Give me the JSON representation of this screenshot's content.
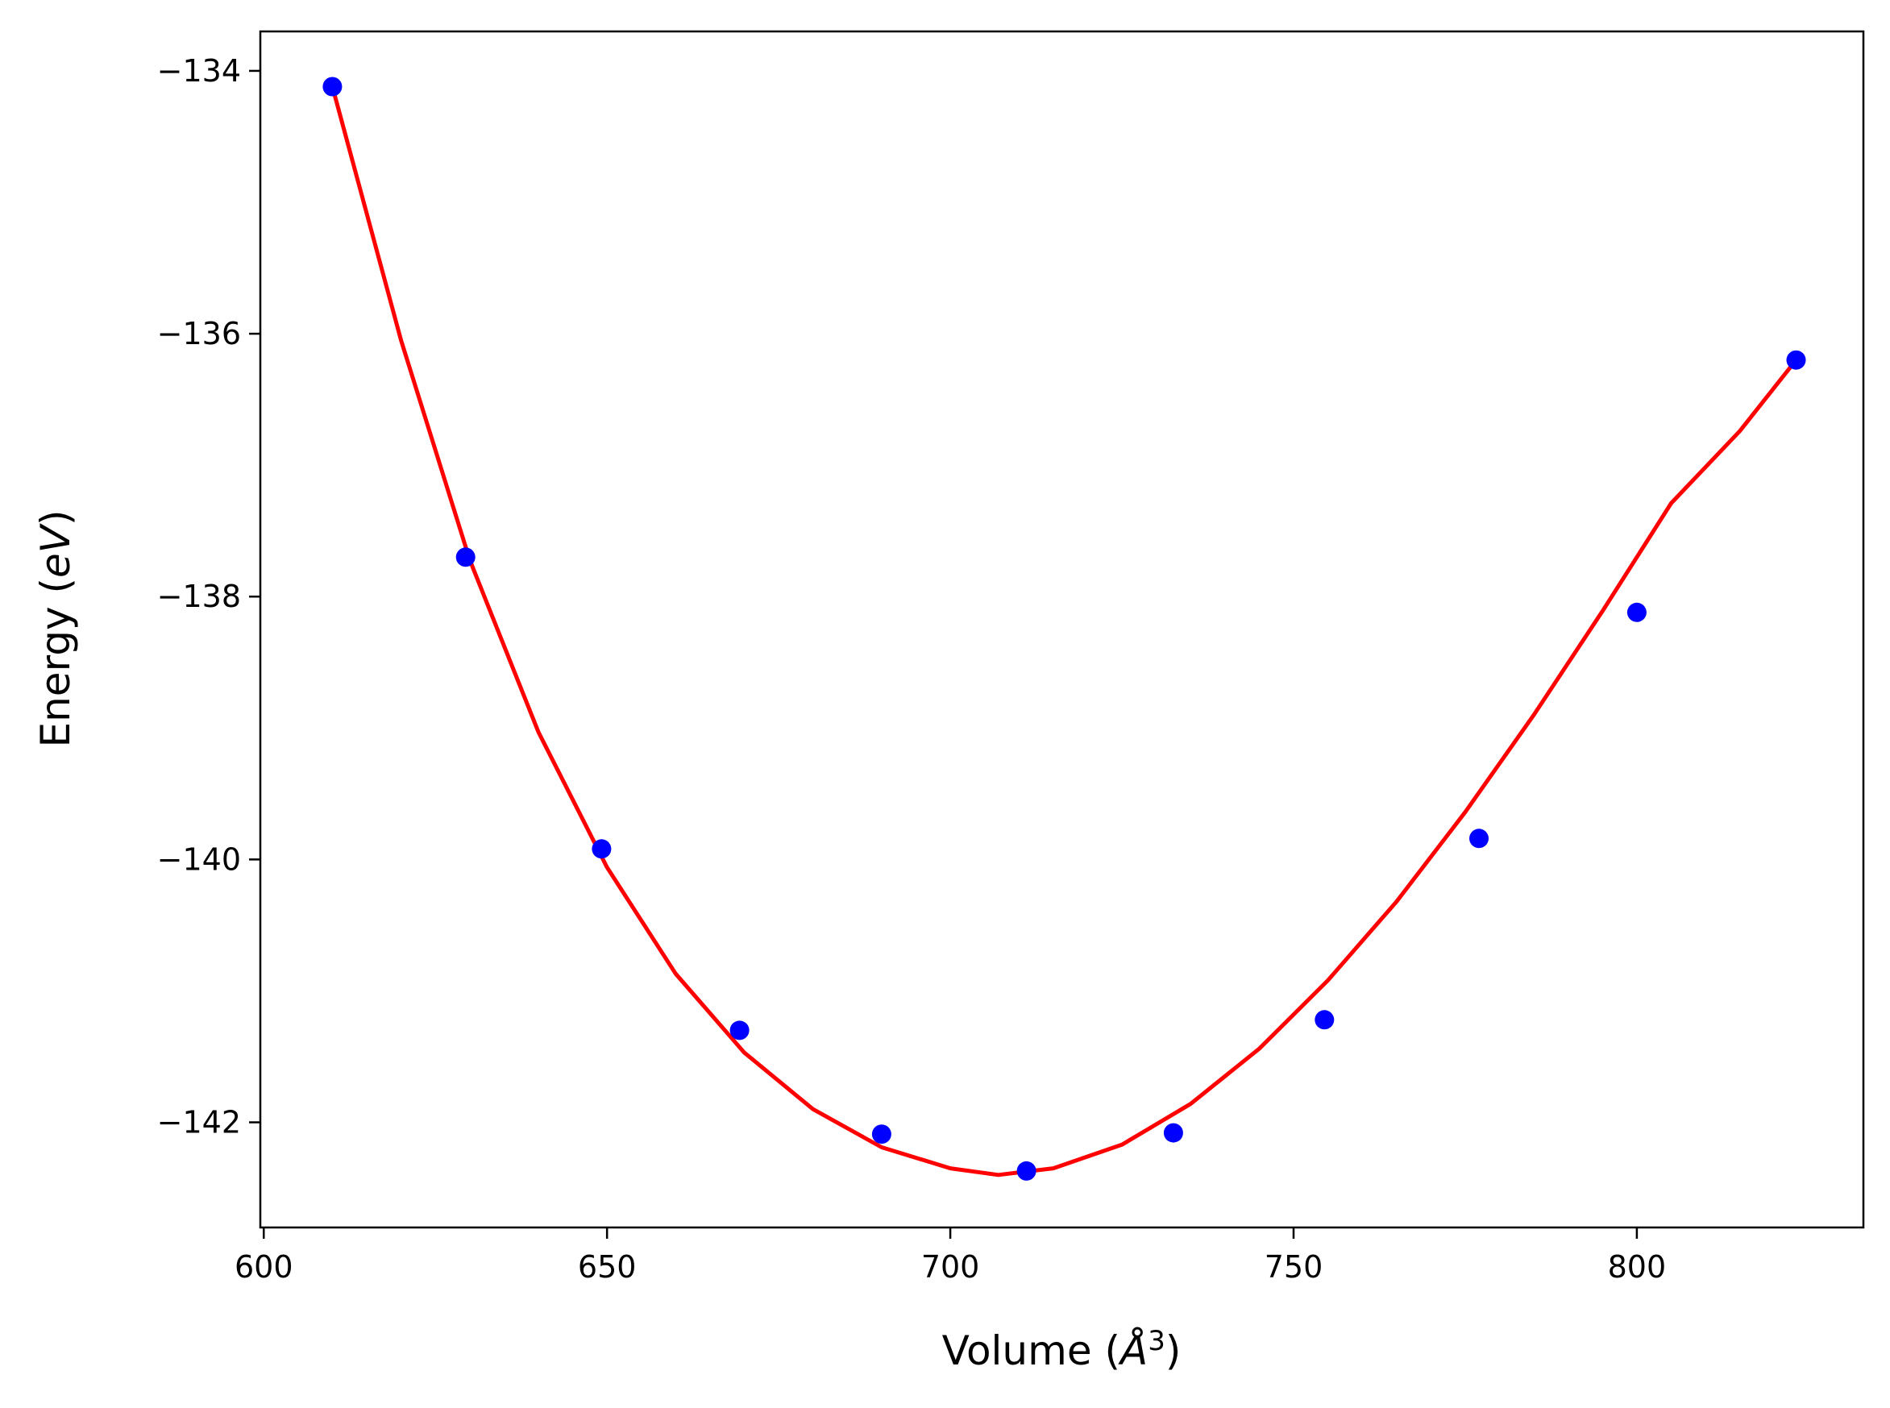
{
  "chart_data": {
    "type": "scatter",
    "title": "",
    "xlabel": {
      "text": "Volume (",
      "italic": "Å",
      "sup": "3",
      "suffix": ")"
    },
    "ylabel": {
      "text": "Energy (",
      "italic": "eV",
      "suffix": ")"
    },
    "xlim": [
      599.5,
      833
    ],
    "ylim": [
      -142.8,
      -133.7
    ],
    "xticks": [
      600,
      650,
      700,
      750,
      800
    ],
    "xtick_labels": [
      "600",
      "650",
      "700",
      "750",
      "800"
    ],
    "yticks": [
      -134,
      -136,
      -138,
      -140,
      -142
    ],
    "ytick_labels": [
      "−134",
      "−136",
      "−138",
      "−140",
      "−142"
    ],
    "grid": false,
    "legend": "none",
    "colors": {
      "points": "#0000ff",
      "fit": "#ff0000"
    },
    "series": [
      {
        "kind": "points",
        "x": [
          610,
          629.4,
          649.2,
          669.3,
          690,
          711.1,
          732.5,
          754.5,
          777,
          800,
          823.2
        ],
        "y": [
          -134.12,
          -137.7,
          -139.92,
          -141.3,
          -142.09,
          -142.37,
          -142.08,
          -141.22,
          -139.84,
          -138.12,
          -136.2
        ]
      },
      {
        "kind": "fit-line",
        "x": [
          610,
          620,
          630,
          640,
          650,
          660,
          670,
          680,
          690,
          700,
          707,
          715,
          725,
          735,
          745,
          755,
          765,
          775,
          785,
          795,
          805,
          815,
          823.2
        ],
        "y": [
          -134.12,
          -136.05,
          -137.72,
          -139.03,
          -140.06,
          -140.87,
          -141.47,
          -141.9,
          -142.19,
          -142.35,
          -142.4,
          -142.35,
          -142.17,
          -141.86,
          -141.44,
          -140.92,
          -140.32,
          -139.64,
          -138.9,
          -138.11,
          -137.29,
          -136.74,
          -136.2
        ]
      }
    ]
  }
}
